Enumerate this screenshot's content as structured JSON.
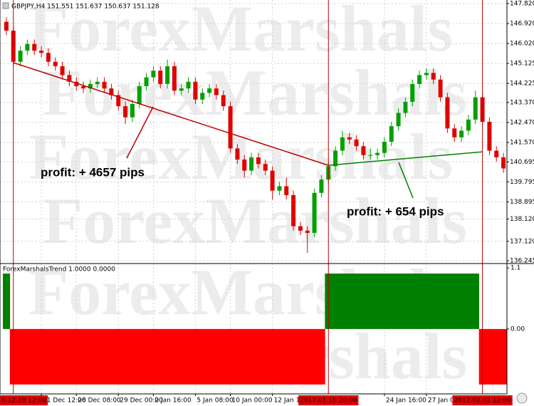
{
  "chart_data": {
    "type": "candlestick",
    "title": "GBPJPY,H4  151.551 151.637 150.637 151.128",
    "watermark": "ForexMarshals",
    "up_color": "#00a000",
    "down_color": "#e00000",
    "grid": true,
    "ylim": [
      136.12,
      147.98
    ],
    "yticks": [
      {
        "value": 147.82,
        "label": "147.820"
      },
      {
        "value": 146.92,
        "label": "146.920"
      },
      {
        "value": 146.02,
        "label": "146.020"
      },
      145.125,
      {
        "value": 144.225,
        "label": "144.225"
      },
      {
        "value": 143.37,
        "label": "143.370"
      },
      {
        "value": 142.47,
        "label": "142.470"
      },
      {
        "value": 141.57,
        "label": "141.570"
      },
      140.695,
      {
        "value": 139.795,
        "label": "139.795"
      },
      {
        "value": 138.895,
        "label": "138.895"
      },
      {
        "value": 138.12,
        "label": "138.120"
      },
      {
        "value": 137.12,
        "label": "137.120"
      },
      136.245
    ],
    "categories": [
      null,
      "6.12.19 12:00",
      null,
      null,
      null,
      "21 Dec 12:00",
      null,
      null,
      null,
      null,
      "26 Dec 08:00",
      null,
      null,
      null,
      null,
      null,
      "29 Dec 00:00",
      null,
      null,
      null,
      null,
      "2 Jan 16:00",
      null,
      null,
      null,
      null,
      null,
      "5 Jan 08:00",
      null,
      null,
      null,
      null,
      "10 Jan 00:00",
      null,
      null,
      null,
      null,
      null,
      "12 Jan 16:00",
      null,
      null,
      null,
      null,
      null,
      null,
      null,
      "2017.01.18 20:00",
      null,
      null,
      null,
      null,
      null,
      null,
      null,
      "24 Jan 16:00",
      null,
      null,
      null,
      null,
      null,
      "27 Jan 08:00",
      null,
      null,
      null,
      null,
      null,
      null,
      null,
      "2017.02.02 12:00",
      null,
      null,
      null
    ],
    "open": [
      147.0,
      146.6,
      145.2,
      145.7,
      146.0,
      145.7,
      145.6,
      145.2,
      145.0,
      144.6,
      144.3,
      144.1,
      144.0,
      144.2,
      144.3,
      144.0,
      143.7,
      143.2,
      142.7,
      143.3,
      144.1,
      144.5,
      144.8,
      144.2,
      145.0,
      143.9,
      144.0,
      144.3,
      143.5,
      143.8,
      144.0,
      143.7,
      143.2,
      141.3,
      140.8,
      140.3,
      140.9,
      140.6,
      140.3,
      139.4,
      139.6,
      139.2,
      137.8,
      137.6,
      137.5,
      139.3,
      139.9,
      140.5,
      141.2,
      141.8,
      141.7,
      141.4,
      141.0,
      141.0,
      141.1,
      141.6,
      142.3,
      142.9,
      143.4,
      144.2,
      144.6,
      144.7,
      144.4,
      143.6,
      142.2,
      141.8,
      142.1,
      142.6,
      143.6,
      142.5,
      141.2,
      140.9
    ],
    "high": [
      147.2,
      146.8,
      145.9,
      146.2,
      146.2,
      145.9,
      145.8,
      145.4,
      145.2,
      144.8,
      144.5,
      144.3,
      144.4,
      144.5,
      144.5,
      144.2,
      143.9,
      143.4,
      143.5,
      144.3,
      144.7,
      145.0,
      145.0,
      145.3,
      145.2,
      144.2,
      144.5,
      144.5,
      144.0,
      144.2,
      144.2,
      143.9,
      143.4,
      141.5,
      141.0,
      141.1,
      141.1,
      140.8,
      140.5,
      139.8,
      140.0,
      139.4,
      138.0,
      137.8,
      139.5,
      140.1,
      140.7,
      141.4,
      142.1,
      142.0,
      141.9,
      141.6,
      141.3,
      141.3,
      141.8,
      142.5,
      143.1,
      143.6,
      144.4,
      144.8,
      144.9,
      144.9,
      144.6,
      143.8,
      142.4,
      142.3,
      142.8,
      143.9,
      143.8,
      142.7,
      141.4,
      141.1
    ],
    "low": [
      146.4,
      145.0,
      145.0,
      145.5,
      145.5,
      145.4,
      145.0,
      144.8,
      144.4,
      144.1,
      143.9,
      143.8,
      143.8,
      144.0,
      143.8,
      143.5,
      143.0,
      142.4,
      142.5,
      143.1,
      143.9,
      144.3,
      144.0,
      144.0,
      143.7,
      143.7,
      143.8,
      143.3,
      143.3,
      143.6,
      143.5,
      143.0,
      141.1,
      140.6,
      140.0,
      140.1,
      140.4,
      140.1,
      139.0,
      139.2,
      139.0,
      137.6,
      137.4,
      136.6,
      137.3,
      139.1,
      139.7,
      140.3,
      141.0,
      141.5,
      141.2,
      140.8,
      140.8,
      140.8,
      140.9,
      141.4,
      142.1,
      142.7,
      143.2,
      144.0,
      144.4,
      144.2,
      143.4,
      142.0,
      141.6,
      141.6,
      141.9,
      142.4,
      142.3,
      141.0,
      140.7,
      140.2
    ],
    "close": [
      146.6,
      145.2,
      145.7,
      146.0,
      145.7,
      145.6,
      145.2,
      145.0,
      144.6,
      144.3,
      144.1,
      144.0,
      144.2,
      144.3,
      144.0,
      143.7,
      143.2,
      142.7,
      143.3,
      144.1,
      144.5,
      144.8,
      144.2,
      145.0,
      143.9,
      144.0,
      144.3,
      143.5,
      143.8,
      144.0,
      143.7,
      143.2,
      141.3,
      140.8,
      140.3,
      140.9,
      140.6,
      140.3,
      139.4,
      139.6,
      139.2,
      137.8,
      137.6,
      137.5,
      139.3,
      139.9,
      140.5,
      141.2,
      141.8,
      141.7,
      141.4,
      141.0,
      141.0,
      141.1,
      141.6,
      142.3,
      142.9,
      143.4,
      144.2,
      144.6,
      144.7,
      144.4,
      143.6,
      142.2,
      141.8,
      142.1,
      142.6,
      143.6,
      142.5,
      141.2,
      140.9,
      140.4
    ],
    "trend_lines": [
      {
        "color": "#c00000",
        "start": [
          1,
          145.16
        ],
        "end": [
          46,
          140.54
        ]
      },
      {
        "color": "#008000",
        "start": [
          46,
          140.54
        ],
        "end": [
          68,
          141.15
        ]
      }
    ],
    "annotations": [
      {
        "text": "profit: + 4657 pips",
        "color": "#e00000"
      },
      {
        "text": "profit: + 654 pips",
        "color": "#008000"
      }
    ],
    "indicator": {
      "type": "histogram",
      "title": "ForexMarshalsTrend 1.0000 0.0000",
      "up_color": "#008000",
      "down_color": "#ff0000",
      "ylim": [
        -1.17,
        1.18
      ],
      "yticks": [
        1.1,
        {
          "value": 0,
          "label": "0.00"
        }
      ],
      "values": [
        1,
        -1,
        -1,
        -1,
        -1,
        -1,
        -1,
        -1,
        -1,
        -1,
        -1,
        -1,
        -1,
        -1,
        -1,
        -1,
        -1,
        -1,
        -1,
        -1,
        -1,
        -1,
        -1,
        -1,
        -1,
        -1,
        -1,
        -1,
        -1,
        -1,
        -1,
        -1,
        -1,
        -1,
        -1,
        -1,
        -1,
        -1,
        -1,
        -1,
        -1,
        -1,
        -1,
        -1,
        -1,
        -1,
        1,
        1,
        1,
        1,
        1,
        1,
        1,
        1,
        1,
        1,
        1,
        1,
        1,
        1,
        1,
        1,
        1,
        1,
        1,
        1,
        1,
        1,
        -1,
        -1,
        -1,
        -1
      ]
    }
  }
}
